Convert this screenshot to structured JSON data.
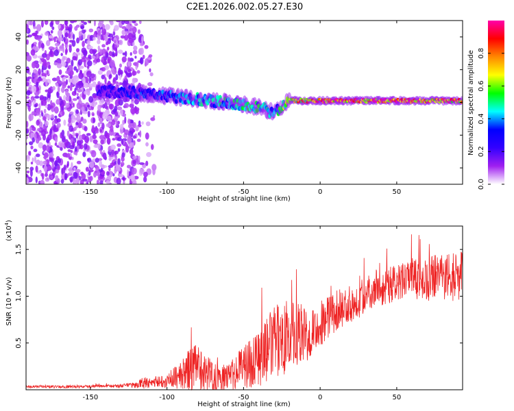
{
  "title": "C2E1.2026.002.05.27.E30",
  "chart_data": [
    {
      "type": "heatmap",
      "xlabel": "Height of straight line (km)",
      "ylabel": "Frequency (Hz)",
      "xlim": [
        -192,
        93
      ],
      "ylim": [
        -50,
        50
      ],
      "xticks": [
        -150,
        -100,
        -50,
        0,
        50
      ],
      "yticks": [
        -40,
        -20,
        0,
        20,
        40
      ],
      "colorbar": {
        "label": "Normalized spectral amplitude",
        "range": [
          0,
          1
        ],
        "ticks": [
          0.0,
          0.2,
          0.4,
          0.6,
          0.8
        ],
        "tick_labels": [
          "0.0",
          "0.2",
          "0.4",
          "0.6",
          "0.8"
        ],
        "stops": [
          "#ffffff",
          "#a020f0",
          "#3300ff",
          "#0000ff",
          "#00ffff",
          "#00ff00",
          "#ffff00",
          "#ff8800",
          "#ff0000",
          "#ff00aa"
        ]
      },
      "features": [
        {
          "kind": "noise",
          "x_range": [
            -192,
            -108
          ],
          "y_range": [
            -50,
            50
          ],
          "amplitude": 0.12
        },
        {
          "kind": "signal_band",
          "x": [
            -145,
            -120,
            -100,
            -80,
            -60,
            -40,
            -30,
            -20,
            0,
            20,
            40,
            60,
            93
          ],
          "y": [
            7,
            6,
            4,
            2,
            0,
            -3,
            -6,
            1,
            1,
            1,
            1,
            1,
            1
          ],
          "amplitude": [
            0.25,
            0.35,
            0.4,
            0.45,
            0.5,
            0.55,
            0.4,
            0.8,
            0.9,
            0.95,
            0.95,
            0.95,
            0.9
          ]
        }
      ]
    },
    {
      "type": "line",
      "xlabel": "Height of straight line (km)",
      "ylabel": "SNR (10 * v/v)",
      "yscale_label": "(x10",
      "yscale_exp": "4",
      "xlim": [
        -192,
        93
      ],
      "ylim": [
        0,
        17500
      ],
      "xticks": [
        -150,
        -100,
        -50,
        0,
        50
      ],
      "yticks": [
        5000,
        10000,
        15000
      ],
      "ytick_labels": [
        "0.5",
        "1.0",
        "1.5"
      ],
      "color": "#ee2222",
      "series": [
        {
          "name": "SNR",
          "x": [
            -192,
            -180,
            -170,
            -160,
            -150,
            -140,
            -130,
            -120,
            -115,
            -110,
            -105,
            -100,
            -95,
            -90,
            -85,
            -80,
            -75,
            -70,
            -65,
            -60,
            -55,
            -50,
            -45,
            -40,
            -35,
            -30,
            -25,
            -20,
            -15,
            -10,
            -5,
            0,
            5,
            10,
            15,
            20,
            25,
            30,
            35,
            40,
            45,
            50,
            55,
            60,
            65,
            70,
            75,
            80,
            85,
            90,
            93
          ],
          "mean": [
            300,
            350,
            300,
            350,
            350,
            400,
            400,
            500,
            800,
            700,
            900,
            1000,
            1300,
            1600,
            2200,
            2400,
            1800,
            1600,
            1300,
            1300,
            1800,
            2600,
            3000,
            3600,
            4200,
            5100,
            5600,
            5600,
            5800,
            6000,
            6500,
            7000,
            7800,
            8400,
            8800,
            9200,
            9600,
            10200,
            10800,
            11000,
            11200,
            11300,
            11600,
            11800,
            11700,
            11800,
            12000,
            11900,
            12000,
            12200,
            12300
          ],
          "amp": [
            150,
            150,
            150,
            150,
            150,
            150,
            200,
            300,
            700,
            400,
            600,
            800,
            1200,
            1600,
            2400,
            2600,
            2000,
            1800,
            1500,
            1500,
            1800,
            2400,
            2800,
            3200,
            3600,
            3800,
            4000,
            4000,
            3500,
            3200,
            2800,
            2500,
            2300,
            2200,
            2100,
            2000,
            2000,
            2000,
            2000,
            2000,
            2000,
            2000,
            2200,
            2300,
            2300,
            2400,
            2500,
            2600,
            2600,
            2600,
            2500
          ]
        }
      ]
    }
  ]
}
